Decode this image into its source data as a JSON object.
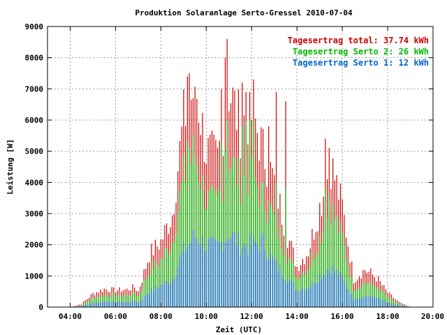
{
  "chart_data": {
    "type": "bar",
    "title": "Produktion Solaranlage Serto-Gressel 2010-07-04",
    "xlabel": "Zeit (UTC)",
    "ylabel": "Leistung [W]",
    "xlim": [
      "03:00",
      "20:00"
    ],
    "ylim": [
      0,
      9000
    ],
    "x_tick_labels": [
      "04:00",
      "06:00",
      "08:00",
      "10:00",
      "12:00",
      "14:00",
      "16:00",
      "18:00",
      "20:00"
    ],
    "y_tick_labels": [
      "0",
      "1000",
      "2000",
      "3000",
      "4000",
      "5000",
      "6000",
      "7000",
      "8000",
      "9000"
    ],
    "grid": true,
    "legend_position": "top-right",
    "legend": [
      {
        "label": "Tagesertrag total: 37.74 kWh",
        "color": "#cc0000"
      },
      {
        "label": "Tagesertrag Serto 2: 26 kWh",
        "color": "#00bb00"
      },
      {
        "label": "Tagesertrag Serto 1: 12 kWh",
        "color": "#0066cc"
      }
    ],
    "sample_interval_minutes": 5,
    "series": [
      {
        "name": "Serto 1",
        "color": "#0066cc",
        "anchors": [
          [
            "04:00",
            0
          ],
          [
            "04:30",
            30
          ],
          [
            "05:00",
            130
          ],
          [
            "05:30",
            180
          ],
          [
            "06:00",
            170
          ],
          [
            "06:30",
            160
          ],
          [
            "06:50",
            200
          ],
          [
            "07:00",
            150
          ],
          [
            "07:30",
            500
          ],
          [
            "08:00",
            700
          ],
          [
            "08:30",
            900
          ],
          [
            "09:00",
            1800
          ],
          [
            "09:30",
            2300
          ],
          [
            "10:00",
            2000
          ],
          [
            "10:30",
            1900
          ],
          [
            "11:00",
            2400
          ],
          [
            "11:30",
            2000
          ],
          [
            "12:00",
            2000
          ],
          [
            "12:30",
            2100
          ],
          [
            "13:00",
            1400
          ],
          [
            "13:30",
            1000
          ],
          [
            "14:00",
            550
          ],
          [
            "14:30",
            650
          ],
          [
            "15:00",
            1000
          ],
          [
            "15:30",
            1300
          ],
          [
            "16:00",
            900
          ],
          [
            "16:30",
            280
          ],
          [
            "17:00",
            350
          ],
          [
            "17:30",
            320
          ],
          [
            "18:00",
            130
          ],
          [
            "18:30",
            50
          ],
          [
            "19:00",
            0
          ]
        ]
      },
      {
        "name": "Serto 2",
        "color": "#00bb00",
        "anchors": [
          [
            "04:00",
            0
          ],
          [
            "04:30",
            50
          ],
          [
            "05:00",
            300
          ],
          [
            "05:30",
            400
          ],
          [
            "06:00",
            370
          ],
          [
            "06:30",
            380
          ],
          [
            "06:50",
            450
          ],
          [
            "07:00",
            350
          ],
          [
            "07:30",
            1200
          ],
          [
            "08:00",
            1500
          ],
          [
            "08:30",
            2100
          ],
          [
            "09:00",
            4200
          ],
          [
            "09:30",
            4900
          ],
          [
            "10:00",
            3400
          ],
          [
            "10:30",
            3300
          ],
          [
            "11:00",
            4800
          ],
          [
            "11:30",
            4000
          ],
          [
            "12:00",
            4300
          ],
          [
            "12:30",
            3500
          ],
          [
            "13:00",
            2800
          ],
          [
            "13:30",
            1800
          ],
          [
            "14:00",
            1000
          ],
          [
            "14:30",
            1300
          ],
          [
            "15:00",
            2200
          ],
          [
            "15:30",
            3200
          ],
          [
            "16:00",
            2200
          ],
          [
            "16:30",
            600
          ],
          [
            "17:00",
            800
          ],
          [
            "17:30",
            650
          ],
          [
            "18:00",
            320
          ],
          [
            "18:30",
            100
          ],
          [
            "19:00",
            0
          ]
        ]
      },
      {
        "name": "total",
        "color": "#cc0000",
        "anchors": [
          [
            "04:00",
            0
          ],
          [
            "04:30",
            100
          ],
          [
            "05:00",
            430
          ],
          [
            "05:30",
            580
          ],
          [
            "06:00",
            540
          ],
          [
            "06:30",
            560
          ],
          [
            "06:50",
            650
          ],
          [
            "07:00",
            500
          ],
          [
            "07:30",
            1700
          ],
          [
            "08:00",
            2100
          ],
          [
            "08:30",
            3000
          ],
          [
            "09:00",
            6000
          ],
          [
            "09:30",
            7200
          ],
          [
            "10:00",
            5000
          ],
          [
            "10:30",
            4700
          ],
          [
            "11:00",
            7000
          ],
          [
            "11:30",
            5800
          ],
          [
            "12:00",
            6300
          ],
          [
            "12:30",
            5000
          ],
          [
            "13:00",
            4000
          ],
          [
            "13:30",
            2500
          ],
          [
            "14:00",
            1300
          ],
          [
            "14:30",
            1800
          ],
          [
            "15:00",
            3200
          ],
          [
            "15:30",
            4600
          ],
          [
            "16:00",
            3200
          ],
          [
            "16:30",
            900
          ],
          [
            "17:00",
            1200
          ],
          [
            "17:30",
            950
          ],
          [
            "18:00",
            450
          ],
          [
            "18:30",
            150
          ],
          [
            "19:00",
            0
          ]
        ]
      }
    ],
    "peaks": [
      {
        "time": "09:10",
        "total": 7400,
        "serto2": 5300
      },
      {
        "time": "09:15",
        "total": 7500,
        "serto2": 5100
      },
      {
        "time": "09:25",
        "total": 6700,
        "serto2": 5500
      },
      {
        "time": "10:40",
        "total": 7000,
        "serto2": 5300
      },
      {
        "time": "10:50",
        "total": 8000,
        "serto2": 5000
      },
      {
        "time": "10:55",
        "total": 8600,
        "serto2": 6000
      },
      {
        "time": "11:35",
        "total": 7200,
        "serto2": 5800
      },
      {
        "time": "11:45",
        "total": 6900,
        "serto2": 6000
      },
      {
        "time": "11:55",
        "total": 6900,
        "serto2": 6000
      },
      {
        "time": "12:00",
        "total": 6000,
        "serto2": 4800
      },
      {
        "time": "12:05",
        "total": 7300,
        "serto2": 6000
      },
      {
        "time": "12:45",
        "total": 5800,
        "serto2": 3400
      },
      {
        "time": "13:05",
        "total": 6900,
        "serto2": 4000
      },
      {
        "time": "13:30",
        "total": 6600,
        "serto2": 3800
      },
      {
        "time": "15:15",
        "total": 5400,
        "serto2": 3800
      },
      {
        "time": "15:25",
        "total": 5100,
        "serto2": 3600
      }
    ]
  }
}
